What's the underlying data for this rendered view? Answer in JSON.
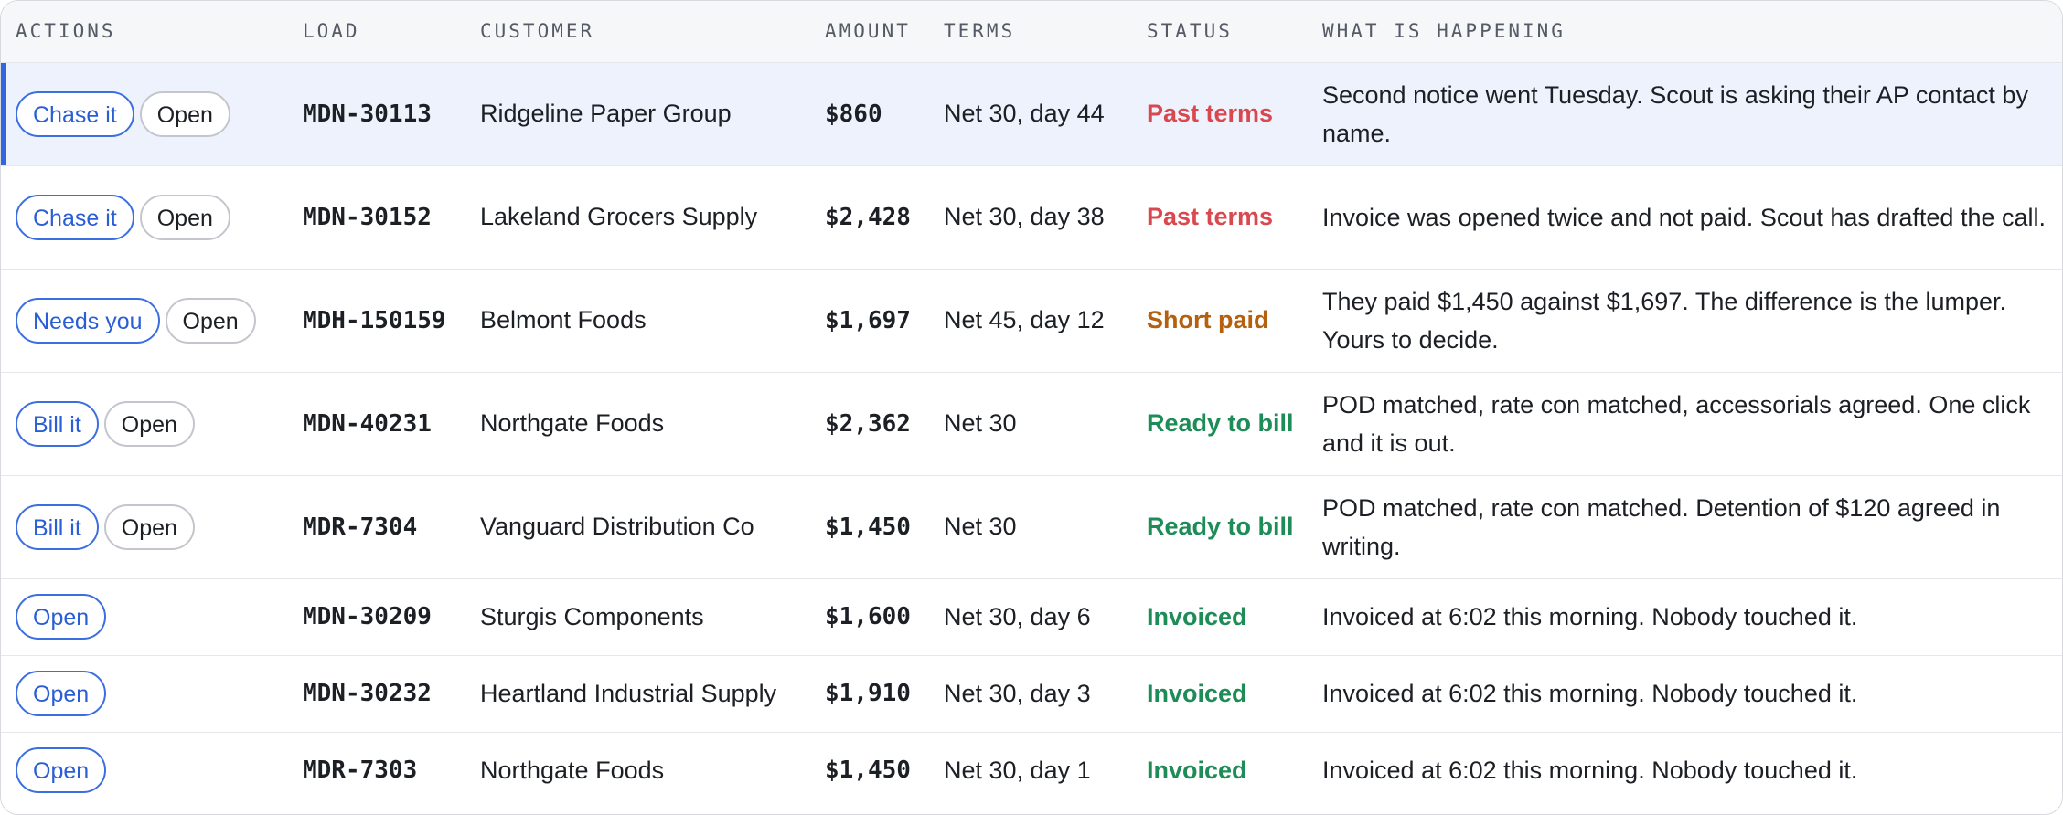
{
  "columns": {
    "actions": "ACTIONS",
    "load": "LOAD",
    "customer": "CUSTOMER",
    "amount": "AMOUNT",
    "terms": "TERMS",
    "status": "STATUS",
    "what": "WHAT IS HAPPENING"
  },
  "colors": {
    "accent": "#3b6fe0",
    "past_terms": "#d9484f",
    "short_paid": "#b5600e",
    "ready": "#1e8c57",
    "highlight_row": "#eef2fc"
  },
  "rows": [
    {
      "primary_action": "Chase it",
      "secondary_action": "Open",
      "load": "MDN-30113",
      "customer": "Ridgeline Paper Group",
      "amount": "$860",
      "terms": "Net 30, day 44",
      "status": "Past terms",
      "what": "Second notice went Tuesday. Scout is asking their AP contact by name.",
      "selected": true
    },
    {
      "primary_action": "Chase it",
      "secondary_action": "Open",
      "load": "MDN-30152",
      "customer": "Lakeland Grocers Supply",
      "amount": "$2,428",
      "terms": "Net 30, day 38",
      "status": "Past terms",
      "what": "Invoice was opened twice and not paid. Scout has drafted the call."
    },
    {
      "primary_action": "Needs you",
      "secondary_action": "Open",
      "load": "MDH-150159",
      "customer": "Belmont Foods",
      "amount": "$1,697",
      "terms": "Net 45, day 12",
      "status": "Short paid",
      "what": "They paid $1,450 against $1,697. The difference is the lumper. Yours to decide."
    },
    {
      "primary_action": "Bill it",
      "secondary_action": "Open",
      "load": "MDN-40231",
      "customer": "Northgate Foods",
      "amount": "$2,362",
      "terms": "Net 30",
      "status": "Ready to bill",
      "what": "POD matched, rate con matched, accessorials agreed. One click and it is out."
    },
    {
      "primary_action": "Bill it",
      "secondary_action": "Open",
      "load": "MDR-7304",
      "customer": "Vanguard Distribution Co",
      "amount": "$1,450",
      "terms": "Net 30",
      "status": "Ready to bill",
      "what": "POD matched, rate con matched. Detention of $120 agreed in writing."
    },
    {
      "primary_action": "Open",
      "load": "MDN-30209",
      "customer": "Sturgis Components",
      "amount": "$1,600",
      "terms": "Net 30, day 6",
      "status": "Invoiced",
      "what": "Invoiced at 6:02 this morning. Nobody touched it."
    },
    {
      "primary_action": "Open",
      "load": "MDN-30232",
      "customer": "Heartland Industrial Supply",
      "amount": "$1,910",
      "terms": "Net 30, day 3",
      "status": "Invoiced",
      "what": "Invoiced at 6:02 this morning. Nobody touched it."
    },
    {
      "primary_action": "Open",
      "load": "MDR-7303",
      "customer": "Northgate Foods",
      "amount": "$1,450",
      "terms": "Net 30, day 1",
      "status": "Invoiced",
      "what": "Invoiced at 6:02 this morning. Nobody touched it."
    }
  ]
}
